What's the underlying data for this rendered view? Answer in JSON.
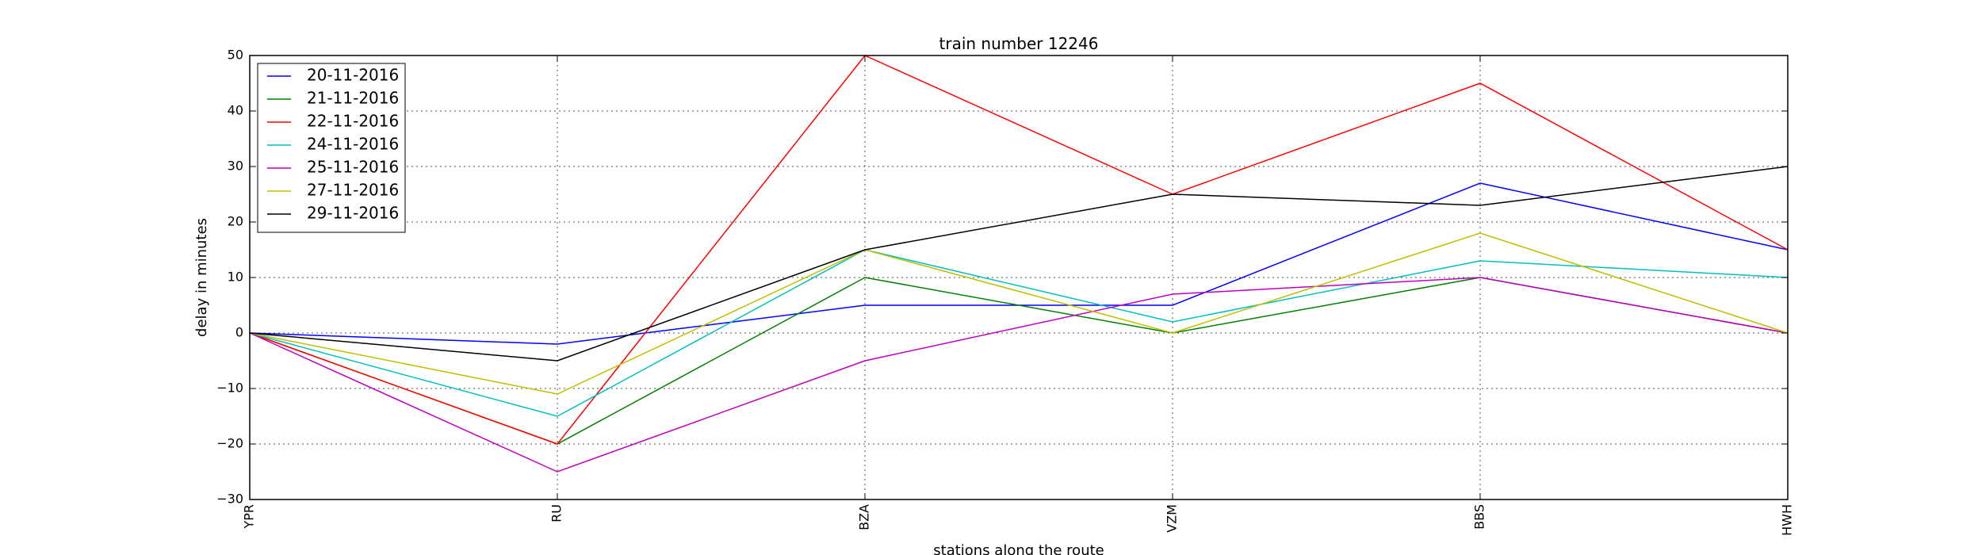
{
  "chart_data": {
    "type": "line",
    "title": "train number 12246",
    "xlabel": "stations along the route",
    "ylabel": "delay in minutes",
    "categories": [
      "YPR",
      "RU",
      "BZA",
      "VZM",
      "BBS",
      "HWH"
    ],
    "ylim": [
      -30,
      50
    ],
    "yticks": [
      -30,
      -20,
      -10,
      0,
      10,
      20,
      30,
      40,
      50
    ],
    "grid": true,
    "legend_position": "top-left",
    "series": [
      {
        "name": "20-11-2016",
        "color": "#0000ff",
        "values": [
          0,
          -2,
          5,
          5,
          27,
          15
        ]
      },
      {
        "name": "21-11-2016",
        "color": "#008000",
        "values": [
          0,
          -20,
          10,
          0,
          10,
          0
        ]
      },
      {
        "name": "22-11-2016",
        "color": "#ff0000",
        "values": [
          0,
          -20,
          50,
          25,
          45,
          15
        ]
      },
      {
        "name": "24-11-2016",
        "color": "#00bfbf",
        "values": [
          0,
          -15,
          15,
          2,
          13,
          10
        ]
      },
      {
        "name": "25-11-2016",
        "color": "#bf00bf",
        "values": [
          0,
          -25,
          -5,
          7,
          10,
          0
        ]
      },
      {
        "name": "27-11-2016",
        "color": "#bfbf00",
        "values": [
          0,
          -11,
          15,
          0,
          18,
          0
        ]
      },
      {
        "name": "29-11-2016",
        "color": "#000000",
        "values": [
          0,
          -5,
          15,
          25,
          23,
          30
        ]
      }
    ]
  }
}
